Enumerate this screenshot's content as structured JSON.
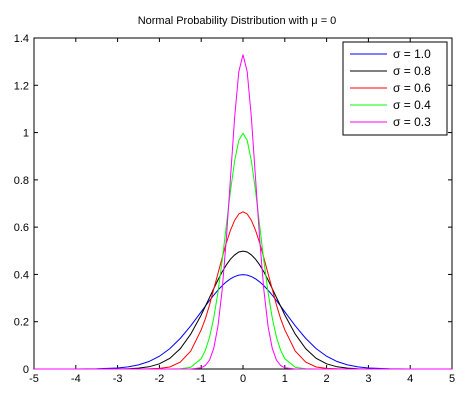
{
  "chart_data": {
    "type": "line",
    "title": "Normal Probability Distribution with μ = 0",
    "xlabel": "",
    "ylabel": "",
    "xlim": [
      -5,
      5
    ],
    "ylim": [
      0,
      1.4
    ],
    "x_ticks": [
      -5,
      -4,
      -3,
      -2,
      -1,
      0,
      1,
      2,
      3,
      4,
      5
    ],
    "y_ticks": [
      0,
      0.2,
      0.4,
      0.6,
      0.8,
      1,
      1.2,
      1.4
    ],
    "x_tick_labels": [
      "-5",
      "-4",
      "-3",
      "-2",
      "-1",
      "0",
      "1",
      "2",
      "3",
      "4",
      "5"
    ],
    "y_tick_labels": [
      "0",
      "0.2",
      "0.4",
      "0.6",
      "0.8",
      "1",
      "1.2",
      "1.4"
    ],
    "grid": false,
    "legend_position": "top-right",
    "x": [
      -5,
      -4.5,
      -4,
      -3.5,
      -3,
      -2.75,
      -2.5,
      -2.25,
      -2,
      -1.75,
      -1.5,
      -1.25,
      -1,
      -0.9,
      -0.8,
      -0.7,
      -0.6,
      -0.5,
      -0.4,
      -0.3,
      -0.2,
      -0.1,
      0,
      0.1,
      0.2,
      0.3,
      0.4,
      0.5,
      0.6,
      0.7,
      0.8,
      0.9,
      1,
      1.25,
      1.5,
      1.75,
      2,
      2.25,
      2.5,
      2.75,
      3,
      3.5,
      4,
      4.5,
      5
    ],
    "series": [
      {
        "name": "σ = 1.0",
        "color": "#0000ff",
        "values": [
          0,
          0,
          0.0001,
          0.0009,
          0.0044,
          0.0091,
          0.0175,
          0.0317,
          0.054,
          0.0863,
          0.1295,
          0.1826,
          0.242,
          0.2661,
          0.2897,
          0.3123,
          0.3332,
          0.3521,
          0.3683,
          0.3814,
          0.391,
          0.397,
          0.3989,
          0.397,
          0.391,
          0.3814,
          0.3683,
          0.3521,
          0.3332,
          0.3123,
          0.2897,
          0.2661,
          0.242,
          0.1826,
          0.1295,
          0.0863,
          0.054,
          0.0317,
          0.0175,
          0.0091,
          0.0044,
          0.0009,
          0.0001,
          0,
          0
        ]
      },
      {
        "name": "σ = 0.8",
        "color": "#000000",
        "values": [
          0,
          0,
          0,
          0.0001,
          0.0004,
          0.0013,
          0.0038,
          0.0093,
          0.0219,
          0.0452,
          0.0861,
          0.1476,
          0.2283,
          0.2659,
          0.3025,
          0.3399,
          0.3764,
          0.4105,
          0.4401,
          0.4645,
          0.4825,
          0.4948,
          0.4987,
          0.4948,
          0.4825,
          0.4645,
          0.4401,
          0.4105,
          0.3764,
          0.3399,
          0.3025,
          0.2659,
          0.2283,
          0.1476,
          0.0861,
          0.0452,
          0.0219,
          0.0093,
          0.0038,
          0.0013,
          0.0004,
          0.0001,
          0,
          0,
          0
        ]
      },
      {
        "name": "σ = 0.6",
        "color": "#ff0000",
        "values": [
          0,
          0,
          0,
          0,
          0,
          0.0001,
          0.0002,
          0.0008,
          0.0026,
          0.0085,
          0.0292,
          0.0758,
          0.1657,
          0.2129,
          0.2712,
          0.3378,
          0.4033,
          0.4697,
          0.5327,
          0.5868,
          0.6289,
          0.6557,
          0.6649,
          0.6557,
          0.6289,
          0.5868,
          0.5327,
          0.4697,
          0.4033,
          0.3378,
          0.2712,
          0.2129,
          0.1657,
          0.0758,
          0.0292,
          0.0085,
          0.0026,
          0.0008,
          0.0002,
          0.0001,
          0,
          0,
          0,
          0,
          0
        ]
      },
      {
        "name": "σ = 0.4",
        "color": "#00ff00",
        "values": [
          0,
          0,
          0,
          0,
          0,
          0,
          0,
          0,
          0,
          0.0002,
          0.0009,
          0.0071,
          0.0438,
          0.0793,
          0.1349,
          0.2158,
          0.3238,
          0.4566,
          0.6049,
          0.7528,
          0.8802,
          0.9672,
          0.9974,
          0.9672,
          0.8802,
          0.7528,
          0.6049,
          0.4566,
          0.3238,
          0.2158,
          0.1349,
          0.0793,
          0.0438,
          0.0071,
          0.0009,
          0.0002,
          0,
          0,
          0,
          0,
          0,
          0,
          0,
          0,
          0
        ]
      },
      {
        "name": "σ = 0.3",
        "color": "#ff00ff",
        "values": [
          0,
          0,
          0,
          0,
          0,
          0,
          0,
          0,
          0,
          0,
          0,
          0.0002,
          0.0051,
          0.0148,
          0.0379,
          0.0874,
          0.18,
          0.3315,
          0.5467,
          0.8065,
          1.0648,
          1.2579,
          1.3298,
          1.2579,
          1.0648,
          0.8065,
          0.5467,
          0.3315,
          0.18,
          0.0874,
          0.0379,
          0.0148,
          0.0051,
          0.0002,
          0,
          0,
          0,
          0,
          0,
          0,
          0,
          0,
          0,
          0,
          0
        ]
      }
    ]
  }
}
